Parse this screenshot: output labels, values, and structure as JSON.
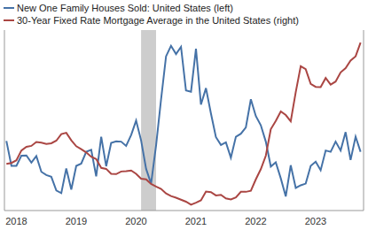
{
  "chart_data": {
    "type": "line",
    "legend": "upper left",
    "grid": false,
    "tick_labels": "x",
    "x": [
      2017.833,
      2017.917,
      2018,
      2018.083,
      2018.167,
      2018.25,
      2018.333,
      2018.417,
      2018.5,
      2018.583,
      2018.667,
      2018.75,
      2018.833,
      2018.917,
      2019,
      2019.083,
      2019.167,
      2019.25,
      2019.333,
      2019.417,
      2019.5,
      2019.583,
      2019.667,
      2019.75,
      2019.833,
      2019.917,
      2020,
      2020.083,
      2020.167,
      2020.25,
      2020.333,
      2020.417,
      2020.5,
      2020.583,
      2020.667,
      2020.75,
      2020.833,
      2020.917,
      2021,
      2021.083,
      2021.167,
      2021.25,
      2021.333,
      2021.417,
      2021.5,
      2021.583,
      2021.667,
      2021.75,
      2021.833,
      2021.917,
      2022,
      2022.083,
      2022.167,
      2022.25,
      2022.333,
      2022.417,
      2022.5,
      2022.583,
      2022.667,
      2022.75,
      2022.833,
      2022.917,
      2023,
      2023.083,
      2023.167,
      2023.25,
      2023.333,
      2023.417,
      2023.5,
      2023.583,
      2023.667,
      2023.75
    ],
    "xlim": [
      2017.8,
      2023.8
    ],
    "xticks": [
      2018,
      2019,
      2020,
      2021,
      2022,
      2023
    ],
    "ylim": [
      500,
      1050
    ],
    "yticks": [
      500,
      600,
      700,
      800,
      900,
      1000
    ],
    "y2lim": [
      2.5,
      8
    ],
    "y2ticks": [
      3,
      4,
      5,
      6,
      7,
      8
    ],
    "recession": [
      2020.083,
      2020.333
    ],
    "series": [
      {
        "name": "New One Family Houses Sold: United States (left)",
        "color": "#4572a7",
        "axis": "y",
        "values": [
          712,
          636,
          636,
          667,
          668,
          646,
          666,
          618,
          608,
          603,
          561,
          553,
          628,
          564,
          636,
          643,
          679,
          685,
          604,
          725,
          635,
          706,
          711,
          710,
          697,
          730,
          774,
          714,
          627,
          582,
          698,
          839,
          970,
          1002,
          977,
          999,
          866,
          862,
          993,
          823,
          873,
          796,
          724,
          700,
          708,
          661,
          725,
          734,
          753,
          839,
          788,
          760,
          710,
          634,
          647,
          598,
          543,
          638,
          569,
          577,
          582,
          636,
          649,
          623,
          683,
          679,
          710,
          683,
          739,
          654,
          725,
          679
        ]
      },
      {
        "name": "30-Year Fixed Rate Mortgage Average in the United States (right)",
        "color": "#aa4643",
        "axis": "y2",
        "values": [
          3.92,
          3.95,
          4.03,
          4.33,
          4.44,
          4.47,
          4.59,
          4.57,
          4.53,
          4.55,
          4.63,
          4.83,
          4.87,
          4.64,
          4.46,
          4.37,
          4.27,
          4.14,
          4.07,
          3.8,
          3.77,
          3.62,
          3.61,
          3.69,
          3.7,
          3.72,
          3.62,
          3.47,
          3.45,
          3.31,
          3.23,
          3.16,
          3.02,
          2.94,
          2.89,
          2.83,
          2.77,
          2.68,
          2.74,
          2.81,
          3.08,
          3.06,
          2.96,
          2.98,
          2.87,
          2.84,
          2.9,
          3.07,
          3.07,
          3.1,
          3.45,
          3.76,
          4.17,
          4.98,
          5.23,
          5.52,
          5.41,
          5.22,
          6.11,
          6.9,
          6.81,
          6.36,
          6.27,
          6.26,
          6.54,
          6.34,
          6.43,
          6.71,
          6.84,
          7.07,
          7.2,
          7.62
        ]
      }
    ]
  }
}
